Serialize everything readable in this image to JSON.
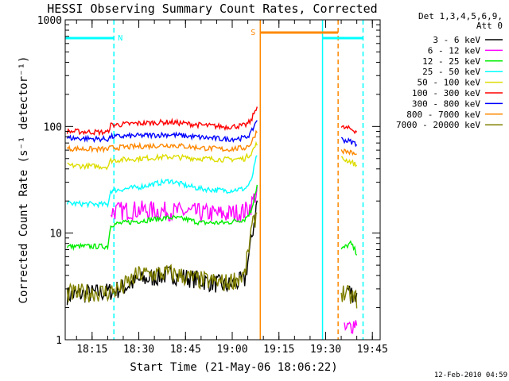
{
  "chart_data": {
    "type": "line",
    "title": "HESSI Observing Summary Count Rates, Corrected",
    "xlabel": "Start Time (21-May-06 18:06:22)",
    "ylabel": "Corrected Count Rate (s⁻¹ detector⁻¹)",
    "y_scale": "log",
    "xlim": [
      "18:06:22",
      "19:47:30"
    ],
    "ylim": [
      1,
      1000
    ],
    "x_ticks": [
      "18:15",
      "18:30",
      "18:45",
      "19:00",
      "19:15",
      "19:30",
      "19:45"
    ],
    "y_ticks": [
      1,
      10,
      100,
      1000
    ],
    "y_tick_labels": [
      "1",
      "10",
      "100",
      "1000"
    ],
    "legend_header": [
      "Det 1,3,4,5,6,9,",
      "Att 0"
    ],
    "legend_position": "top-right",
    "footer_date": "12-Feb-2010 04:59",
    "data_gap": [
      "19:09",
      "19:34"
    ],
    "series": [
      {
        "name": "3 - 6 keV",
        "color": "#000000",
        "points": [
          [
            "18:07",
            2.6
          ],
          [
            "18:20",
            2.8
          ],
          [
            "18:24",
            3.0
          ],
          [
            "18:30",
            3.6
          ],
          [
            "18:40",
            4.1
          ],
          [
            "18:50",
            3.6
          ],
          [
            "18:58",
            3.2
          ],
          [
            "19:04",
            3.6
          ],
          [
            "19:06",
            8
          ],
          [
            "19:08",
            20
          ],
          [
            "19:37",
            3.0
          ],
          [
            "19:40",
            2.5
          ]
        ]
      },
      {
        "name": "6 - 12 keV",
        "color": "#ff00ff",
        "points": [
          [
            "18:21",
            16
          ],
          [
            "18:30",
            16.5
          ],
          [
            "18:40",
            16
          ],
          [
            "18:50",
            15.5
          ],
          [
            "18:58",
            15
          ],
          [
            "19:04",
            16
          ],
          [
            "19:06",
            18
          ],
          [
            "19:08",
            25
          ],
          [
            "19:36",
            1.2
          ],
          [
            "19:40",
            1.5
          ]
        ]
      },
      {
        "name": "12 - 25 keV",
        "color": "#00ee00",
        "points": [
          [
            "18:07",
            7.5
          ],
          [
            "18:20",
            7.5
          ],
          [
            "18:21",
            12
          ],
          [
            "18:30",
            13
          ],
          [
            "18:40",
            14
          ],
          [
            "18:45",
            13.5
          ],
          [
            "18:50",
            12.5
          ],
          [
            "18:58",
            12.5
          ],
          [
            "19:04",
            13.5
          ],
          [
            "19:06",
            16
          ],
          [
            "19:08",
            28
          ],
          [
            "19:35",
            7
          ],
          [
            "19:38",
            8
          ],
          [
            "19:40",
            6.5
          ]
        ]
      },
      {
        "name": "25 - 50 keV",
        "color": "#00ffff",
        "points": [
          [
            "18:07",
            19
          ],
          [
            "18:20",
            18.5
          ],
          [
            "18:21",
            25
          ],
          [
            "18:30",
            27
          ],
          [
            "18:40",
            31
          ],
          [
            "18:45",
            28
          ],
          [
            "18:50",
            26
          ],
          [
            "18:58",
            25
          ],
          [
            "19:04",
            26
          ],
          [
            "19:06",
            30
          ],
          [
            "19:08",
            55
          ]
        ]
      },
      {
        "name": "50 - 100 keV",
        "color": "#dddd00",
        "points": [
          [
            "18:07",
            43
          ],
          [
            "18:20",
            42
          ],
          [
            "18:21",
            48
          ],
          [
            "18:30",
            50
          ],
          [
            "18:40",
            52
          ],
          [
            "18:50",
            50
          ],
          [
            "18:58",
            49
          ],
          [
            "19:04",
            50
          ],
          [
            "19:06",
            56
          ],
          [
            "19:08",
            70
          ],
          [
            "19:35",
            50
          ],
          [
            "19:38",
            47
          ],
          [
            "19:40",
            43
          ]
        ]
      },
      {
        "name": "100 - 300 keV",
        "color": "#ff0000",
        "points": [
          [
            "18:07",
            90
          ],
          [
            "18:20",
            88
          ],
          [
            "18:21",
            103
          ],
          [
            "18:30",
            107
          ],
          [
            "18:40",
            110
          ],
          [
            "18:50",
            103
          ],
          [
            "18:58",
            99
          ],
          [
            "19:04",
            102
          ],
          [
            "19:06",
            112
          ],
          [
            "19:08",
            158
          ],
          [
            "19:35",
            98
          ],
          [
            "19:38",
            95
          ],
          [
            "19:40",
            90
          ]
        ]
      },
      {
        "name": "300 - 800 keV",
        "color": "#0000ff",
        "points": [
          [
            "18:07",
            78
          ],
          [
            "18:20",
            76
          ],
          [
            "18:21",
            80
          ],
          [
            "18:30",
            82
          ],
          [
            "18:40",
            84
          ],
          [
            "18:50",
            79
          ],
          [
            "18:58",
            76
          ],
          [
            "19:04",
            78
          ],
          [
            "19:06",
            86
          ],
          [
            "19:08",
            118
          ],
          [
            "19:35",
            76
          ],
          [
            "19:38",
            72
          ],
          [
            "19:40",
            69
          ]
        ]
      },
      {
        "name": "800 - 7000 keV",
        "color": "#ff8800",
        "points": [
          [
            "18:07",
            62
          ],
          [
            "18:20",
            61
          ],
          [
            "18:21",
            63
          ],
          [
            "18:30",
            65
          ],
          [
            "18:40",
            67
          ],
          [
            "18:50",
            63
          ],
          [
            "18:58",
            61
          ],
          [
            "19:04",
            63
          ],
          [
            "19:06",
            69
          ],
          [
            "19:08",
            92
          ],
          [
            "19:35",
            60
          ],
          [
            "19:38",
            57
          ],
          [
            "19:40",
            54
          ]
        ]
      },
      {
        "name": "7000 - 20000 keV",
        "color": "#808000",
        "points": [
          [
            "18:07",
            2.7
          ],
          [
            "18:20",
            2.8
          ],
          [
            "18:24",
            3.0
          ],
          [
            "18:30",
            4.1
          ],
          [
            "18:40",
            4.2
          ],
          [
            "18:50",
            3.6
          ],
          [
            "18:58",
            3.4
          ],
          [
            "19:04",
            4.0
          ],
          [
            "19:06",
            10
          ],
          [
            "19:08",
            16
          ],
          [
            "19:35",
            2.8
          ],
          [
            "19:40",
            2.4
          ]
        ]
      }
    ],
    "status_bars": [
      {
        "label": "N",
        "color": "#00ffff",
        "spans": [
          [
            "18:06:22",
            "18:22"
          ],
          [
            "19:29",
            "19:42"
          ]
        ]
      },
      {
        "label": "S",
        "color": "#ff8800",
        "spans": [
          [
            "19:09",
            "19:34"
          ]
        ]
      }
    ],
    "vertical_markers": [
      {
        "t": "18:22",
        "color": "#00ffff",
        "style": "dashed"
      },
      {
        "t": "19:09",
        "color": "#ff8800",
        "style": "solid"
      },
      {
        "t": "19:29",
        "color": "#00ffff",
        "style": "solid"
      },
      {
        "t": "19:34",
        "color": "#ff8800",
        "style": "dashed"
      },
      {
        "t": "19:42",
        "color": "#00ffff",
        "style": "dashed"
      }
    ]
  }
}
